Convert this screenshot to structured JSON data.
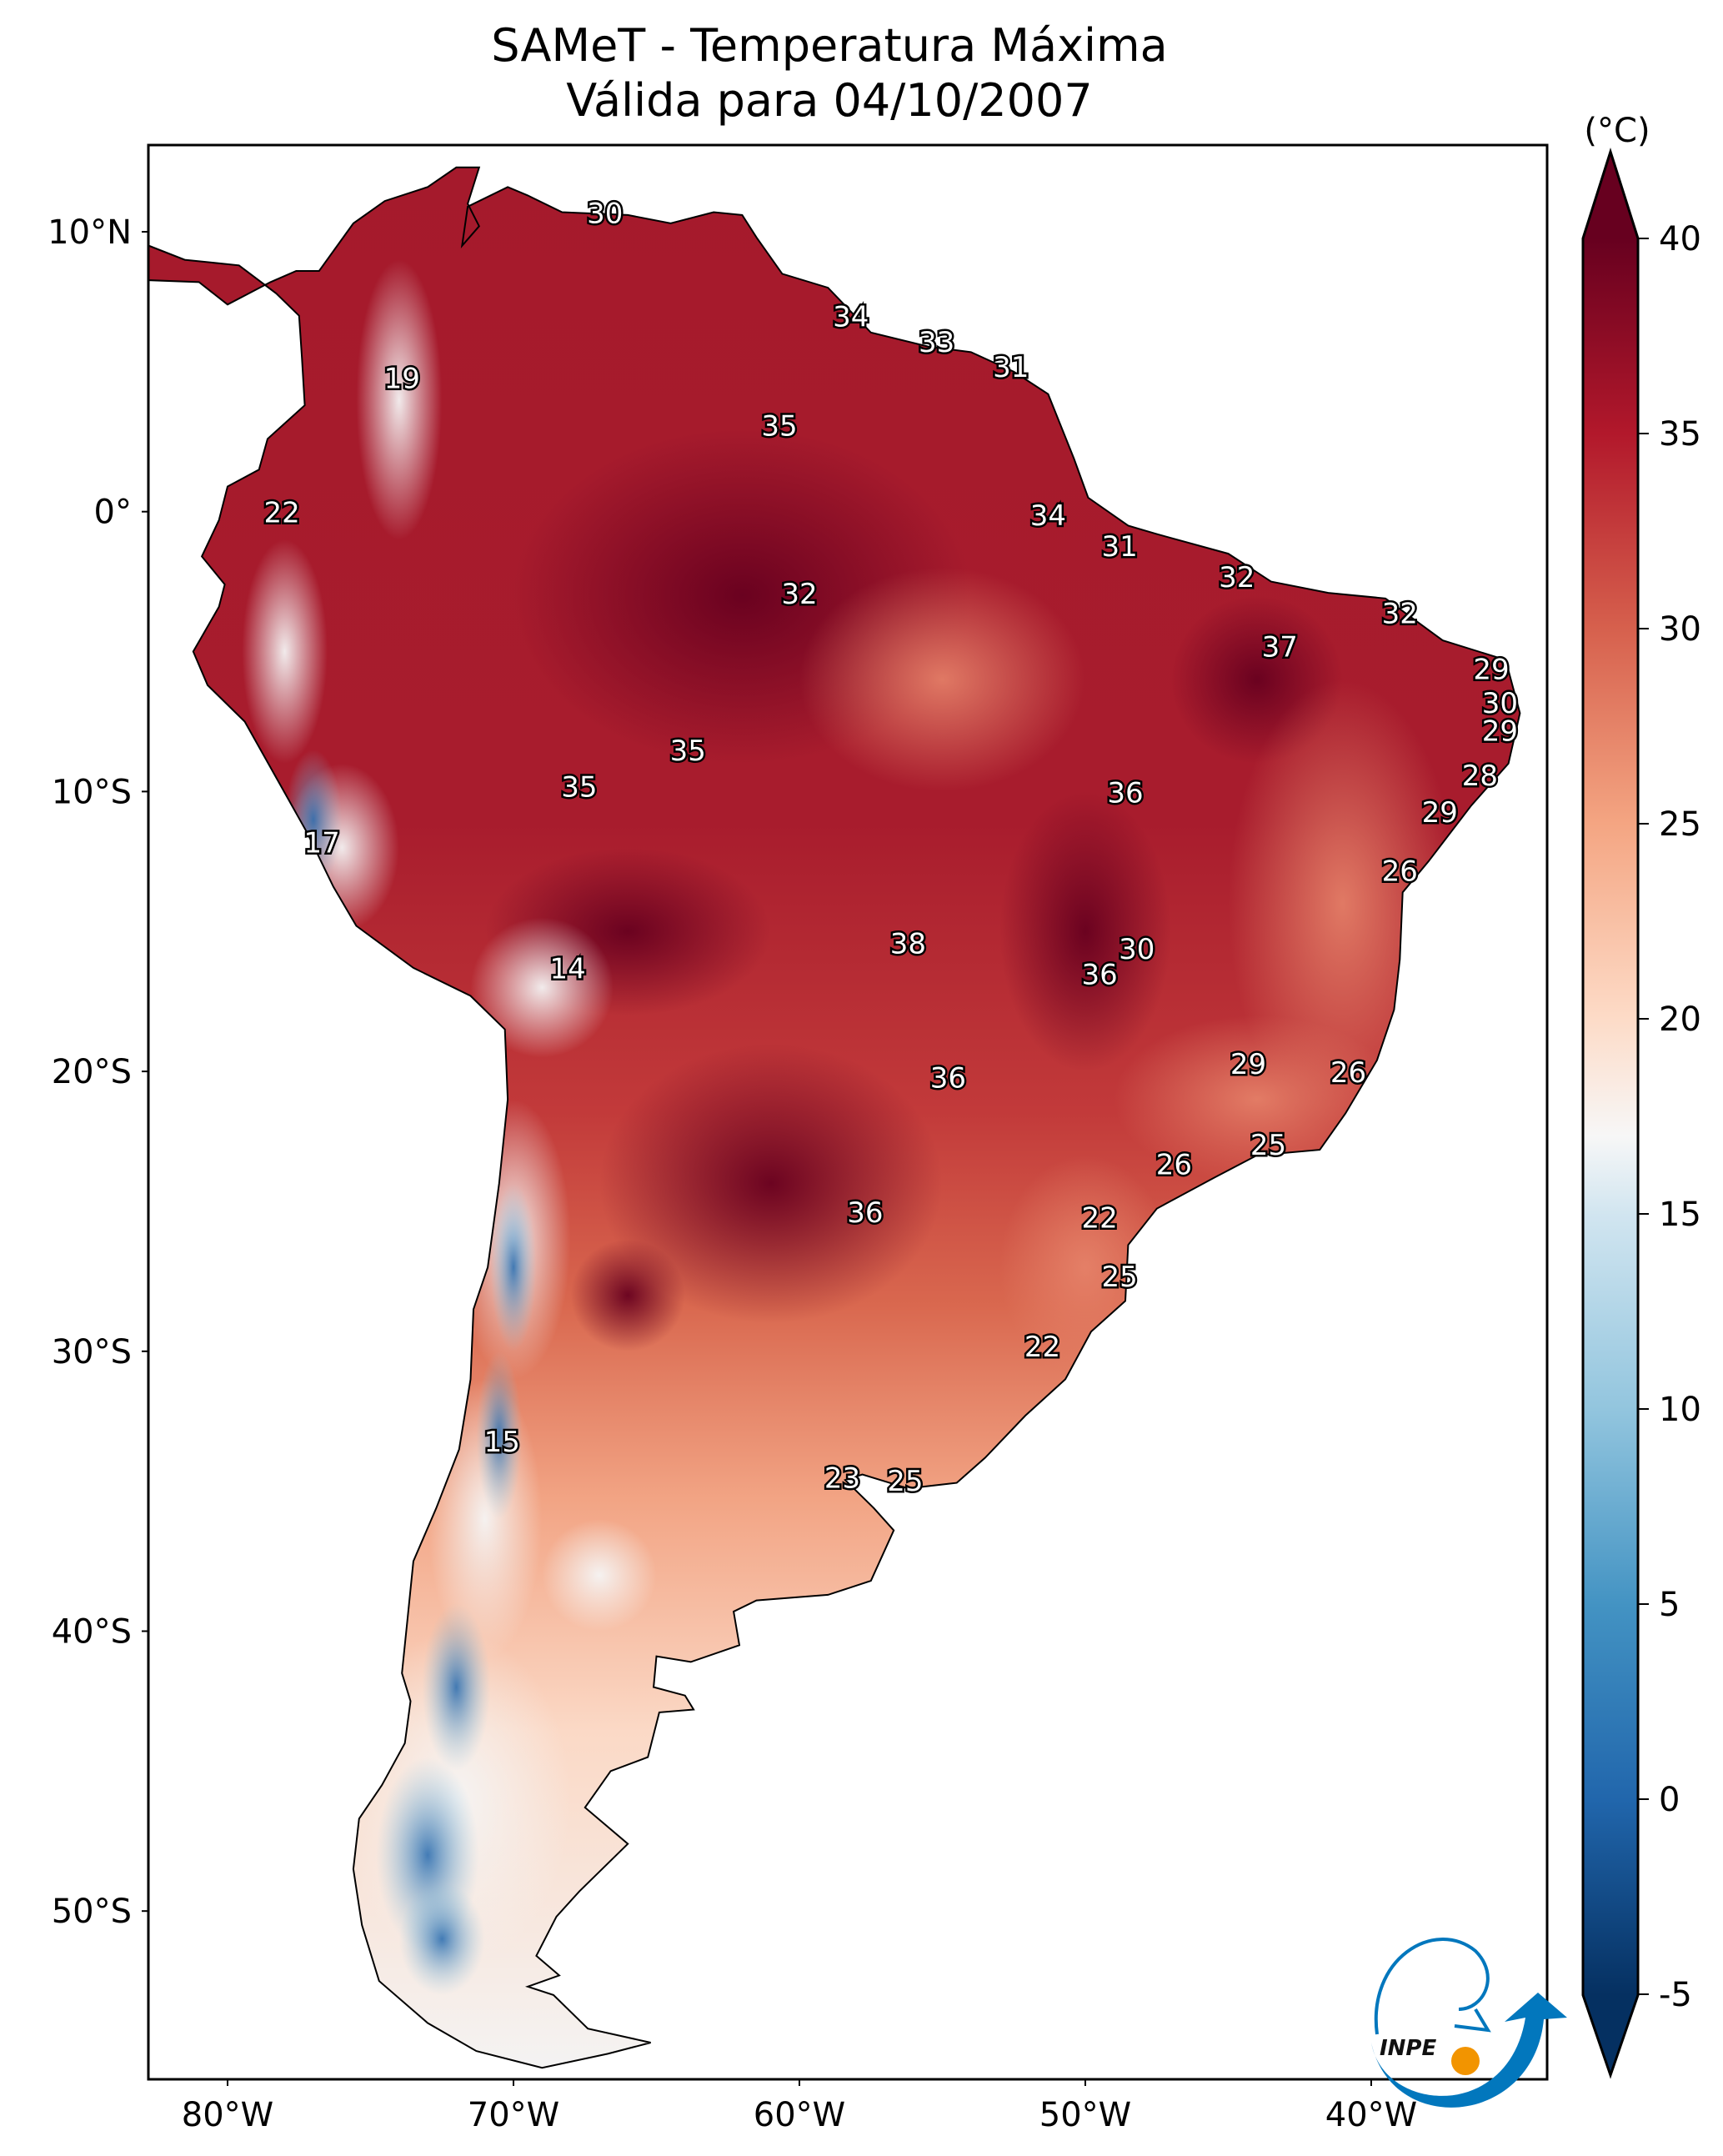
{
  "title": {
    "line1": "SAMeT - Temperatura Máxima",
    "line2": "Válida para 04/10/2007"
  },
  "colorbar": {
    "unit": "(°C)",
    "min": -5,
    "max": 40,
    "extend": "both",
    "colormap": "RdBu_r",
    "ticks": [
      "40",
      "35",
      "30",
      "25",
      "20",
      "15",
      "10",
      "5",
      "0",
      "-5"
    ],
    "tick_values": [
      40,
      35,
      30,
      25,
      20,
      15,
      10,
      5,
      0,
      -5
    ],
    "colors": {
      "40": "#67001f",
      "35": "#b2182b",
      "30": "#d6604d",
      "25": "#f4a582",
      "20": "#fddbc7",
      "17": "#f7f7f7",
      "15": "#d1e5f0",
      "10": "#92c5de",
      "5": "#4393c3",
      "0": "#2166ac",
      "-5": "#053061"
    }
  },
  "axes": {
    "lat_ticks": [
      {
        "value": 10,
        "label": "10°N"
      },
      {
        "value": 0,
        "label": "0°"
      },
      {
        "value": -10,
        "label": "10°S"
      },
      {
        "value": -20,
        "label": "20°S"
      },
      {
        "value": -30,
        "label": "30°S"
      },
      {
        "value": -40,
        "label": "40°S"
      },
      {
        "value": -50,
        "label": "50°S"
      }
    ],
    "lon_ticks": [
      {
        "value": -80,
        "label": "80°W"
      },
      {
        "value": -70,
        "label": "70°W"
      },
      {
        "value": -60,
        "label": "60°W"
      },
      {
        "value": -50,
        "label": "50°W"
      },
      {
        "value": -40,
        "label": "40°W"
      }
    ],
    "lon_range": [
      -82.8,
      -33.9
    ],
    "lat_range": [
      -56,
      13.1
    ]
  },
  "map_data": {
    "type": "filled-contour",
    "variable": "Temperatura Máxima",
    "contour_labels": [
      {
        "value": "30",
        "lon": -66.8,
        "lat": 10.6
      },
      {
        "value": "19",
        "lon": -73.9,
        "lat": 4.7
      },
      {
        "value": "22",
        "lon": -78.1,
        "lat": -0.1
      },
      {
        "value": "34",
        "lon": -58.2,
        "lat": 6.9
      },
      {
        "value": "33",
        "lon": -55.2,
        "lat": 6.0
      },
      {
        "value": "31",
        "lon": -52.6,
        "lat": 5.1
      },
      {
        "value": "35",
        "lon": -60.7,
        "lat": 3.0
      },
      {
        "value": "34",
        "lon": -51.3,
        "lat": -0.2
      },
      {
        "value": "31",
        "lon": -48.8,
        "lat": -1.3
      },
      {
        "value": "32",
        "lon": -60.0,
        "lat": -3.0
      },
      {
        "value": "32",
        "lon": -44.7,
        "lat": -2.4
      },
      {
        "value": "32",
        "lon": -39.0,
        "lat": -3.7
      },
      {
        "value": "37",
        "lon": -43.2,
        "lat": -4.9
      },
      {
        "value": "29",
        "lon": -35.8,
        "lat": -5.7
      },
      {
        "value": "30",
        "lon": -35.5,
        "lat": -6.9
      },
      {
        "value": "29",
        "lon": -35.5,
        "lat": -7.9
      },
      {
        "value": "35",
        "lon": -63.9,
        "lat": -8.6
      },
      {
        "value": "35",
        "lon": -67.7,
        "lat": -9.9
      },
      {
        "value": "28",
        "lon": -36.2,
        "lat": -9.5
      },
      {
        "value": "36",
        "lon": -48.6,
        "lat": -10.1
      },
      {
        "value": "29",
        "lon": -37.6,
        "lat": -10.8
      },
      {
        "value": "17",
        "lon": -76.7,
        "lat": -11.9
      },
      {
        "value": "26",
        "lon": -39.0,
        "lat": -12.9
      },
      {
        "value": "38",
        "lon": -56.2,
        "lat": -15.5
      },
      {
        "value": "30",
        "lon": -48.2,
        "lat": -15.7
      },
      {
        "value": "14",
        "lon": -68.1,
        "lat": -16.4
      },
      {
        "value": "36",
        "lon": -49.5,
        "lat": -16.6
      },
      {
        "value": "29",
        "lon": -44.3,
        "lat": -19.8
      },
      {
        "value": "26",
        "lon": -40.8,
        "lat": -20.1
      },
      {
        "value": "36",
        "lon": -54.8,
        "lat": -20.3
      },
      {
        "value": "25",
        "lon": -43.6,
        "lat": -22.7
      },
      {
        "value": "26",
        "lon": -46.9,
        "lat": -23.4
      },
      {
        "value": "36",
        "lon": -57.7,
        "lat": -25.1
      },
      {
        "value": "22",
        "lon": -49.5,
        "lat": -25.3
      },
      {
        "value": "25",
        "lon": -48.8,
        "lat": -27.4
      },
      {
        "value": "22",
        "lon": -51.5,
        "lat": -29.9
      },
      {
        "value": "15",
        "lon": -70.4,
        "lat": -33.3
      },
      {
        "value": "23",
        "lon": -58.5,
        "lat": -34.6
      },
      {
        "value": "25",
        "lon": -56.3,
        "lat": -34.7
      }
    ]
  },
  "logo": {
    "text": "INPE",
    "primary_color": "#0277bd",
    "accent_color": "#f29400"
  }
}
